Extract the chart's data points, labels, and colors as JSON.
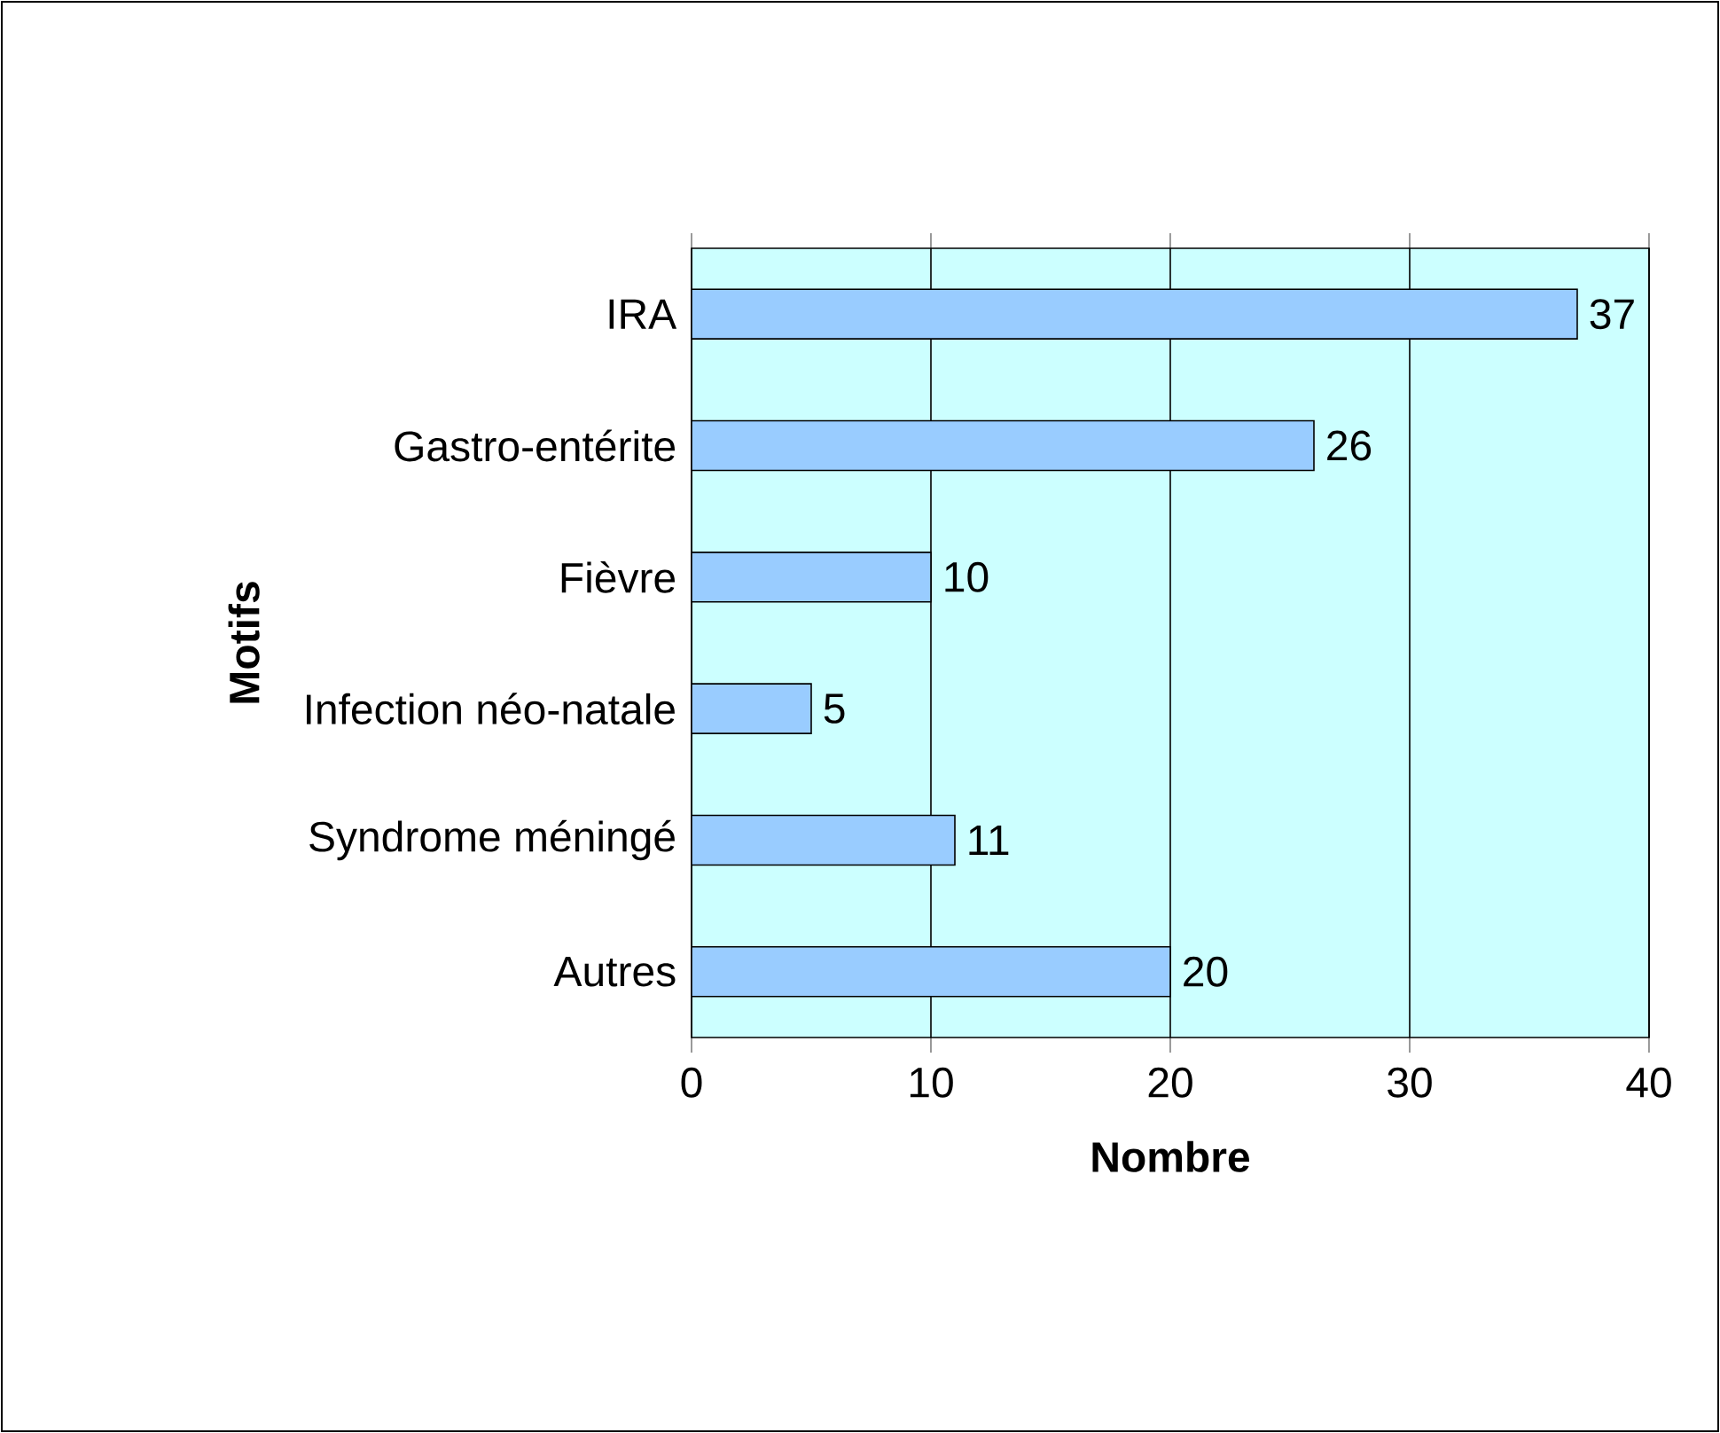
{
  "chart_data": {
    "type": "bar",
    "orientation": "horizontal",
    "xlabel": "Nombre",
    "ylabel": "Motifs",
    "categories": [
      "IRA",
      "Gastro-entérite",
      "Fièvre",
      "Infection néo-natale",
      "Syndrome méningé",
      "Autres"
    ],
    "values": [
      37,
      26,
      10,
      5,
      11,
      20
    ],
    "color": "#99ccff",
    "xlim": [
      0,
      40
    ],
    "xticks": [
      0,
      10,
      20,
      30,
      40
    ],
    "grid": "x",
    "data_labels": true
  }
}
